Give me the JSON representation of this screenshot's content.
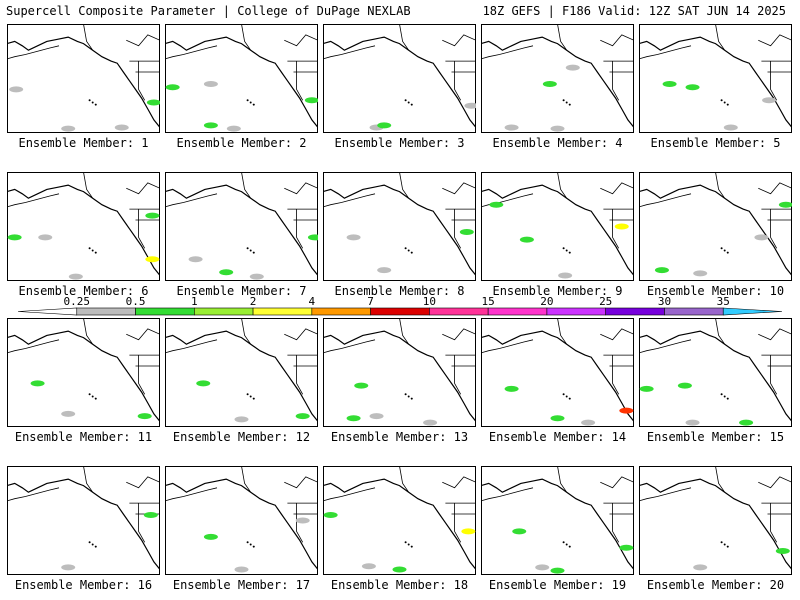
{
  "header": {
    "title_left": "Supercell Composite Parameter | College of DuPage NEXLAB",
    "title_right": "18Z GEFS | F186 Valid: 12Z SAT JUN 14 2025"
  },
  "caption_prefix": "Ensemble Member: ",
  "members": [
    {
      "label": "Ensemble Member: 1",
      "blobs": [
        [
          0.06,
          0.6,
          "#bdbdbd"
        ],
        [
          0.4,
          0.96,
          "#bdbdbd"
        ],
        [
          0.75,
          0.95,
          "#bdbdbd"
        ],
        [
          0.96,
          0.72,
          "#33dd33"
        ]
      ]
    },
    {
      "label": "Ensemble Member: 2",
      "blobs": [
        [
          0.05,
          0.58,
          "#33dd33"
        ],
        [
          0.3,
          0.55,
          "#bdbdbd"
        ],
        [
          0.3,
          0.93,
          "#33dd33"
        ],
        [
          0.45,
          0.96,
          "#bdbdbd"
        ],
        [
          0.96,
          0.7,
          "#33dd33"
        ]
      ]
    },
    {
      "label": "Ensemble Member: 3",
      "blobs": [
        [
          0.35,
          0.95,
          "#bdbdbd"
        ],
        [
          0.4,
          0.93,
          "#33dd33"
        ],
        [
          0.97,
          0.75,
          "#bdbdbd"
        ]
      ]
    },
    {
      "label": "Ensemble Member: 4",
      "blobs": [
        [
          0.45,
          0.55,
          "#33dd33"
        ],
        [
          0.2,
          0.95,
          "#bdbdbd"
        ],
        [
          0.5,
          0.96,
          "#bdbdbd"
        ],
        [
          0.6,
          0.4,
          "#bdbdbd"
        ]
      ]
    },
    {
      "label": "Ensemble Member: 5",
      "blobs": [
        [
          0.35,
          0.58,
          "#33dd33"
        ],
        [
          0.2,
          0.55,
          "#33dd33"
        ],
        [
          0.6,
          0.95,
          "#bdbdbd"
        ],
        [
          0.85,
          0.7,
          "#bdbdbd"
        ]
      ]
    },
    {
      "label": "Ensemble Member: 6",
      "blobs": [
        [
          0.05,
          0.6,
          "#33dd33"
        ],
        [
          0.25,
          0.6,
          "#bdbdbd"
        ],
        [
          0.95,
          0.4,
          "#33dd33"
        ],
        [
          0.95,
          0.8,
          "#ffff00"
        ],
        [
          0.45,
          0.96,
          "#bdbdbd"
        ]
      ]
    },
    {
      "label": "Ensemble Member: 7",
      "blobs": [
        [
          0.4,
          0.92,
          "#33dd33"
        ],
        [
          0.2,
          0.8,
          "#bdbdbd"
        ],
        [
          0.6,
          0.96,
          "#bdbdbd"
        ],
        [
          0.98,
          0.6,
          "#33dd33"
        ]
      ]
    },
    {
      "label": "Ensemble Member: 8",
      "blobs": [
        [
          0.2,
          0.6,
          "#bdbdbd"
        ],
        [
          0.4,
          0.9,
          "#bdbdbd"
        ],
        [
          0.94,
          0.55,
          "#33dd33"
        ]
      ]
    },
    {
      "label": "Ensemble Member: 9",
      "blobs": [
        [
          0.3,
          0.62,
          "#33dd33"
        ],
        [
          0.1,
          0.3,
          "#33dd33"
        ],
        [
          0.92,
          0.5,
          "#ffff00"
        ],
        [
          0.55,
          0.95,
          "#bdbdbd"
        ]
      ]
    },
    {
      "label": "Ensemble Member: 10",
      "blobs": [
        [
          0.4,
          0.93,
          "#bdbdbd"
        ],
        [
          0.15,
          0.9,
          "#33dd33"
        ],
        [
          0.8,
          0.6,
          "#bdbdbd"
        ],
        [
          0.96,
          0.3,
          "#33dd33"
        ]
      ]
    },
    {
      "label": "Ensemble Member: 11",
      "blobs": [
        [
          0.2,
          0.6,
          "#33dd33"
        ],
        [
          0.4,
          0.88,
          "#bdbdbd"
        ],
        [
          0.9,
          0.9,
          "#33dd33"
        ]
      ]
    },
    {
      "label": "Ensemble Member: 12",
      "blobs": [
        [
          0.25,
          0.6,
          "#33dd33"
        ],
        [
          0.5,
          0.93,
          "#bdbdbd"
        ],
        [
          0.9,
          0.9,
          "#33dd33"
        ]
      ]
    },
    {
      "label": "Ensemble Member: 13",
      "blobs": [
        [
          0.25,
          0.62,
          "#33dd33"
        ],
        [
          0.35,
          0.9,
          "#bdbdbd"
        ],
        [
          0.2,
          0.92,
          "#33dd33"
        ],
        [
          0.7,
          0.96,
          "#bdbdbd"
        ]
      ]
    },
    {
      "label": "Ensemble Member: 14",
      "blobs": [
        [
          0.2,
          0.65,
          "#33dd33"
        ],
        [
          0.5,
          0.92,
          "#33dd33"
        ],
        [
          0.95,
          0.85,
          "#ff3300"
        ],
        [
          0.7,
          0.96,
          "#bdbdbd"
        ]
      ]
    },
    {
      "label": "Ensemble Member: 15",
      "blobs": [
        [
          0.3,
          0.62,
          "#33dd33"
        ],
        [
          0.05,
          0.65,
          "#33dd33"
        ],
        [
          0.35,
          0.96,
          "#bdbdbd"
        ],
        [
          0.7,
          0.96,
          "#33dd33"
        ]
      ]
    },
    {
      "label": "Ensemble Member: 16",
      "blobs": [
        [
          0.4,
          0.93,
          "#bdbdbd"
        ],
        [
          0.94,
          0.45,
          "#33dd33"
        ]
      ]
    },
    {
      "label": "Ensemble Member: 17",
      "blobs": [
        [
          0.3,
          0.65,
          "#33dd33"
        ],
        [
          0.5,
          0.95,
          "#bdbdbd"
        ],
        [
          0.9,
          0.5,
          "#bdbdbd"
        ]
      ]
    },
    {
      "label": "Ensemble Member: 18",
      "blobs": [
        [
          0.05,
          0.45,
          "#33dd33"
        ],
        [
          0.3,
          0.92,
          "#bdbdbd"
        ],
        [
          0.5,
          0.95,
          "#33dd33"
        ],
        [
          0.95,
          0.6,
          "#ffff00"
        ]
      ]
    },
    {
      "label": "Ensemble Member: 19",
      "blobs": [
        [
          0.25,
          0.6,
          "#33dd33"
        ],
        [
          0.4,
          0.93,
          "#bdbdbd"
        ],
        [
          0.5,
          0.96,
          "#33dd33"
        ],
        [
          0.95,
          0.75,
          "#33dd33"
        ]
      ]
    },
    {
      "label": "Ensemble Member: 20",
      "blobs": [
        [
          0.4,
          0.93,
          "#bdbdbd"
        ],
        [
          0.94,
          0.78,
          "#33dd33"
        ]
      ]
    }
  ],
  "colorbar": {
    "labels": [
      "0.25",
      "0.5",
      "1",
      "2",
      "4",
      "7",
      "10",
      "15",
      "20",
      "25",
      "30",
      "35"
    ],
    "colors": [
      "#ffffff",
      "#bdbdbd",
      "#33dd33",
      "#99ee33",
      "#ffff33",
      "#ff9900",
      "#dd0000",
      "#ff3399",
      "#ff33cc",
      "#cc33ff",
      "#7700dd",
      "#9966cc",
      "#33ccff"
    ]
  }
}
